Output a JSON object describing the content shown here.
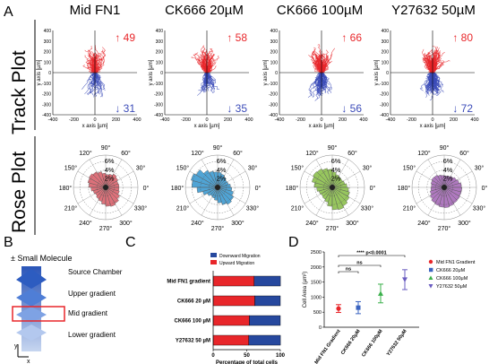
{
  "panel_labels": [
    "A",
    "B",
    "C",
    "D"
  ],
  "row_labels": {
    "track": "Track Plot",
    "rose": "Rose Plot"
  },
  "column_titles": [
    "Mid FN1",
    "CK666 20µM",
    "CK666 100µM",
    "Y27632 50µM"
  ],
  "colors": {
    "up": "#e8262a",
    "down": "#3b4bb8",
    "rose": [
      "#d9626b",
      "#3d9ad0",
      "#8cc04c",
      "#a66ab8"
    ],
    "bar_down": "#26489e",
    "bar_up": "#e8262a"
  },
  "chart_data": [
    {
      "type": "scatter",
      "panel": "A-track",
      "xlabel": "x axis [µm]",
      "ylabel": "y axis [µm]",
      "xlim": [
        -400,
        400
      ],
      "ylim": [
        -400,
        400
      ],
      "x_ticks": [
        "-400",
        "-200",
        "0",
        "200",
        "400"
      ],
      "y_ticks": [
        "400",
        "300",
        "200",
        "100",
        "0",
        "-100",
        "-200",
        "-300",
        "-400"
      ],
      "panels": [
        {
          "title": "Mid FN1",
          "up_count": "↑ 49",
          "down_count": "↓ 31"
        },
        {
          "title": "CK666 20µM",
          "up_count": "↑ 58",
          "down_count": "↓ 35"
        },
        {
          "title": "CK666 100µM",
          "up_count": "↑ 66",
          "down_count": "↓ 56"
        },
        {
          "title": "Y27632 50µM",
          "up_count": "↑ 80",
          "down_count": "↓ 72"
        }
      ]
    },
    {
      "type": "rose",
      "panel": "A-rose",
      "angle_labels": [
        "90°",
        "60°",
        "30°",
        "0°",
        "330°",
        "300°",
        "270°",
        "240°",
        "210°",
        "180°",
        "150°",
        "120°"
      ],
      "radial_labels": [
        "2%",
        "4%",
        "6%"
      ],
      "series": [
        {
          "name": "Mid FN1",
          "values": [
            3.1,
            3.0,
            3.3,
            3.6,
            3.2,
            3.0,
            3.3,
            3.8,
            4.2,
            4.5,
            4.3,
            3.9,
            3.4,
            3.0,
            2.8,
            3.1,
            3.4,
            3.9,
            4.4,
            4.6,
            4.3,
            3.8,
            3.3,
            3.1
          ]
        },
        {
          "name": "CK666 20µM",
          "values": [
            3.0,
            2.6,
            2.5,
            2.8,
            3.2,
            3.5,
            3.6,
            3.9,
            4.6,
            5.8,
            6.4,
            6.0,
            4.8,
            3.6,
            2.8,
            2.4,
            2.6,
            3.0,
            3.6,
            4.2,
            4.6,
            4.3,
            3.8,
            3.3
          ]
        },
        {
          "name": "CK666 100µM",
          "values": [
            3.4,
            3.0,
            2.8,
            2.9,
            3.1,
            3.6,
            4.2,
            4.6,
            5.0,
            5.2,
            4.9,
            4.2,
            3.6,
            3.2,
            3.0,
            3.2,
            3.6,
            4.4,
            5.2,
            5.4,
            5.0,
            4.6,
            4.2,
            3.8
          ]
        },
        {
          "name": "Y27632 50µM",
          "values": [
            4.0,
            3.6,
            3.3,
            3.0,
            2.8,
            2.7,
            2.8,
            3.0,
            3.3,
            3.4,
            3.2,
            3.0,
            3.1,
            3.4,
            3.8,
            4.2,
            4.4,
            4.6,
            4.7,
            4.5,
            4.3,
            4.2,
            4.1,
            4.1
          ]
        }
      ]
    },
    {
      "type": "bar",
      "panel": "C",
      "stacked": true,
      "orientation": "horizontal",
      "categories": [
        "Mid FN1 gradient",
        "CK666 20 µM",
        "CK666 100 µM",
        "Y27632 50 µM"
      ],
      "series": [
        {
          "name": "Upward Migration",
          "values": [
            61,
            62,
            54,
            53
          ]
        },
        {
          "name": "Downward Migration",
          "values": [
            39,
            38,
            46,
            47
          ]
        }
      ],
      "xlabel": "Percentage of total cells",
      "xlim": [
        0,
        100
      ],
      "x_ticks": [
        "0",
        "50",
        "100"
      ],
      "legend": [
        "Downward Migration",
        "Upward Migration"
      ]
    },
    {
      "type": "scatter",
      "panel": "D",
      "categories": [
        "Mid FN1 Gradient",
        "CK666 20μM",
        "CK666 100μM",
        "Y27632 50μM"
      ],
      "series": [
        {
          "name": "Mid FN1 Gradient",
          "mean": 620,
          "err": 130,
          "marker": "circle",
          "color": "#e8262a"
        },
        {
          "name": "CK666 20μM",
          "mean": 650,
          "err": 200,
          "marker": "square",
          "color": "#3b64c0"
        },
        {
          "name": "CK666 100μM",
          "mean": 1120,
          "err": 310,
          "marker": "triangle",
          "color": "#3ab04a"
        },
        {
          "name": "Y27632 50μM",
          "mean": 1580,
          "err": 330,
          "marker": "triangle-down",
          "color": "#6a5cc0"
        }
      ],
      "ylabel": "Cell Area (μm²)",
      "ylim": [
        0,
        2500
      ],
      "y_ticks": [
        "0",
        "500",
        "1000",
        "1500",
        "2000",
        "2500"
      ],
      "annotations": [
        "ns",
        "ns",
        "**** p<0.0001"
      ]
    }
  ],
  "schematic": {
    "title": "± Small Molecule",
    "labels": [
      "Source Chamber",
      "Upper gradient",
      "Mid gradient",
      "Lower gradient"
    ],
    "axis_y": "y",
    "axis_x": "x"
  }
}
